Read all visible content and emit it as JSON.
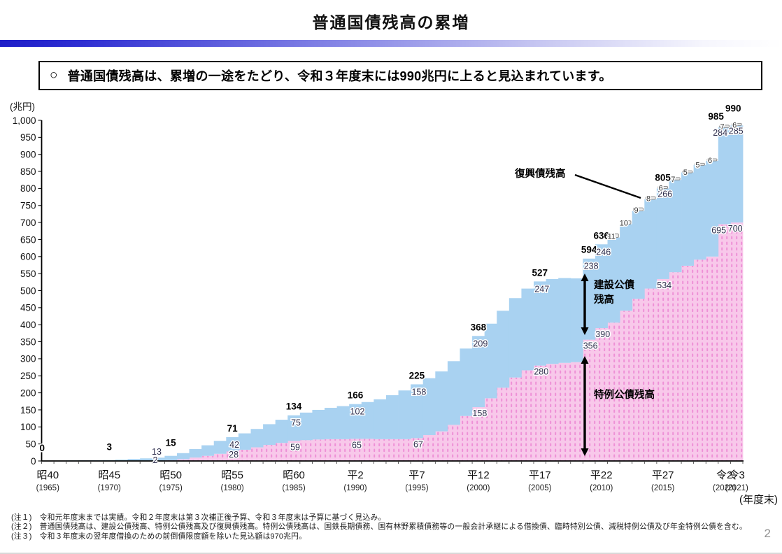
{
  "page": {
    "title": "普通国債残高の累増",
    "page_number": "2"
  },
  "callout": {
    "bullet": "○",
    "text": "普通国債残高は、累増の一途をたどり、令和３年度末には990兆円に上ると見込まれています。"
  },
  "chart_data": {
    "type": "area",
    "title": "普通国債残高の累増",
    "unit_label": "(兆円)",
    "axis_suffix": "(年度末)",
    "ylim": [
      0,
      1000
    ],
    "ytick_step": 50,
    "x_start_year": 1965,
    "grid": false,
    "series": [
      {
        "name": "特例公債残高",
        "role": "special",
        "fill": "#f8c8ea",
        "pattern_dot": "#ee90d6",
        "values": [
          0,
          0,
          0,
          0,
          0,
          0,
          0,
          0,
          0,
          0,
          2,
          5,
          10,
          15,
          21,
          28,
          33,
          40,
          47,
          53,
          59,
          61,
          63,
          64,
          64,
          65,
          65,
          64,
          64,
          64,
          67,
          76,
          87,
          106,
          132,
          158,
          184,
          215,
          245,
          266,
          280,
          285,
          288,
          290,
          356,
          390,
          406,
          441,
          476,
          506,
          534,
          554,
          573,
          591,
          600,
          695,
          700
        ]
      },
      {
        "name": "建設公債残高",
        "role": "construction",
        "fill": "#a9d2f1",
        "values": [
          0.2,
          0.7,
          1.5,
          2.1,
          2.6,
          2.8,
          4,
          5.8,
          7.6,
          9.7,
          13,
          18,
          25,
          31,
          38,
          42,
          48,
          54,
          61,
          68,
          75,
          81,
          87,
          92,
          97,
          102,
          108,
          117,
          129,
          143,
          158,
          167,
          176,
          187,
          198,
          209,
          219,
          226,
          233,
          240,
          247,
          249,
          249,
          246,
          238,
          246,
          250,
          254,
          258,
          262,
          266,
          271,
          274,
          278,
          281,
          284,
          285
        ]
      },
      {
        "name": "復興債残高",
        "role": "reconstruction",
        "fill": "#ebebeb",
        "stroke": "#909090",
        "values": [
          0,
          0,
          0,
          0,
          0,
          0,
          0,
          0,
          0,
          0,
          0,
          0,
          0,
          0,
          0,
          0,
          0,
          0,
          0,
          0,
          0,
          0,
          0,
          0,
          0,
          0,
          0,
          0,
          0,
          0,
          0,
          0,
          0,
          0,
          0,
          0,
          0,
          0,
          0,
          0,
          0,
          0,
          0,
          0,
          0,
          0,
          11,
          10,
          9,
          8,
          6,
          7,
          5,
          5,
          6,
          7,
          6
        ]
      }
    ],
    "x_ticks": [
      {
        "era": "昭40",
        "western": "(1965)",
        "year": 1965
      },
      {
        "era": "昭45",
        "western": "(1970)",
        "year": 1970
      },
      {
        "era": "昭50",
        "western": "(1975)",
        "year": 1975
      },
      {
        "era": "昭55",
        "western": "(1980)",
        "year": 1980
      },
      {
        "era": "昭60",
        "western": "(1985)",
        "year": 1985
      },
      {
        "era": "平2",
        "western": "(1990)",
        "year": 1990
      },
      {
        "era": "平7",
        "western": "(1995)",
        "year": 1995
      },
      {
        "era": "平12",
        "western": "(2000)",
        "year": 2000
      },
      {
        "era": "平17",
        "western": "(2005)",
        "year": 2005
      },
      {
        "era": "平22",
        "western": "(2010)",
        "year": 2010
      },
      {
        "era": "平27",
        "western": "(2015)",
        "year": 2015
      },
      {
        "era": "令2",
        "western": "(2020)",
        "year": 2020
      },
      {
        "era": "令3",
        "western": "(2021)",
        "year": 2021
      }
    ],
    "labels": {
      "totals": [
        {
          "year": 1965,
          "text": "0"
        },
        {
          "year": 1970,
          "text": "3"
        },
        {
          "year": 1975,
          "text": "15"
        },
        {
          "year": 1980,
          "text": "71"
        },
        {
          "year": 1985,
          "text": "134"
        },
        {
          "year": 1990,
          "text": "166"
        },
        {
          "year": 1995,
          "text": "225"
        },
        {
          "year": 2000,
          "text": "368"
        },
        {
          "year": 2005,
          "text": "527"
        },
        {
          "year": 2009,
          "text": "594"
        },
        {
          "year": 2010,
          "text": "636"
        },
        {
          "year": 2015,
          "text": "805"
        },
        {
          "year": 2020,
          "text": "985"
        },
        {
          "year": 2021,
          "text": "990"
        }
      ],
      "construction": [
        {
          "year": 1975,
          "text": "13"
        },
        {
          "year": 1980,
          "text": "42"
        },
        {
          "year": 1985,
          "text": "75"
        },
        {
          "year": 1990,
          "text": "102"
        },
        {
          "year": 1995,
          "text": "158"
        },
        {
          "year": 2000,
          "text": "209"
        },
        {
          "year": 2005,
          "text": "247"
        },
        {
          "year": 2009,
          "text": "238"
        },
        {
          "year": 2010,
          "text": "246"
        },
        {
          "year": 2015,
          "text": "266"
        },
        {
          "year": 2020,
          "text": "284"
        },
        {
          "year": 2021,
          "text": "285"
        }
      ],
      "special": [
        {
          "year": 1975,
          "text": "2"
        },
        {
          "year": 1980,
          "text": "28"
        },
        {
          "year": 1985,
          "text": "59"
        },
        {
          "year": 1990,
          "text": "65"
        },
        {
          "year": 1995,
          "text": "67"
        },
        {
          "year": 2000,
          "text": "158"
        },
        {
          "year": 2005,
          "text": "280"
        },
        {
          "year": 2009,
          "text": "356"
        },
        {
          "year": 2010,
          "text": "390"
        },
        {
          "year": 2015,
          "text": "534"
        },
        {
          "year": 2020,
          "text": "695"
        },
        {
          "year": 2021,
          "text": "700"
        }
      ],
      "reconstruction": [
        {
          "year": 2011,
          "text": "11"
        },
        {
          "year": 2012,
          "text": "10"
        },
        {
          "year": 2013,
          "text": "9"
        },
        {
          "year": 2014,
          "text": "8"
        },
        {
          "year": 2015,
          "text": "6"
        },
        {
          "year": 2016,
          "text": "7"
        },
        {
          "year": 2017,
          "text": "5"
        },
        {
          "year": 2018,
          "text": "5"
        },
        {
          "year": 2019,
          "text": "6"
        },
        {
          "year": 2020,
          "text": "7"
        },
        {
          "year": 2021,
          "text": "6"
        }
      ]
    },
    "annotations": {
      "reconstruction": {
        "text": "復興債残高"
      },
      "construction": {
        "line1": "建設公債",
        "line2": "残高"
      },
      "special": {
        "text": "特例公債残高"
      }
    }
  },
  "notes": [
    "(注１)　令和元年度末までは実績。令和２年度末は第３次補正後予算、令和３年度末は予算に基づく見込み。",
    "(注２)　普通国債残高は、建設公債残高、特例公債残高及び復興債残高。特例公債残高は、国鉄長期債務、国有林野累積債務等の一般会計承継による借換債、臨時特別公債、減税特例公債及び年金特例公債を含む。",
    "(注３)　令和３年度末の翌年度借換のための前倒債限度額を除いた見込額は970兆円。"
  ]
}
